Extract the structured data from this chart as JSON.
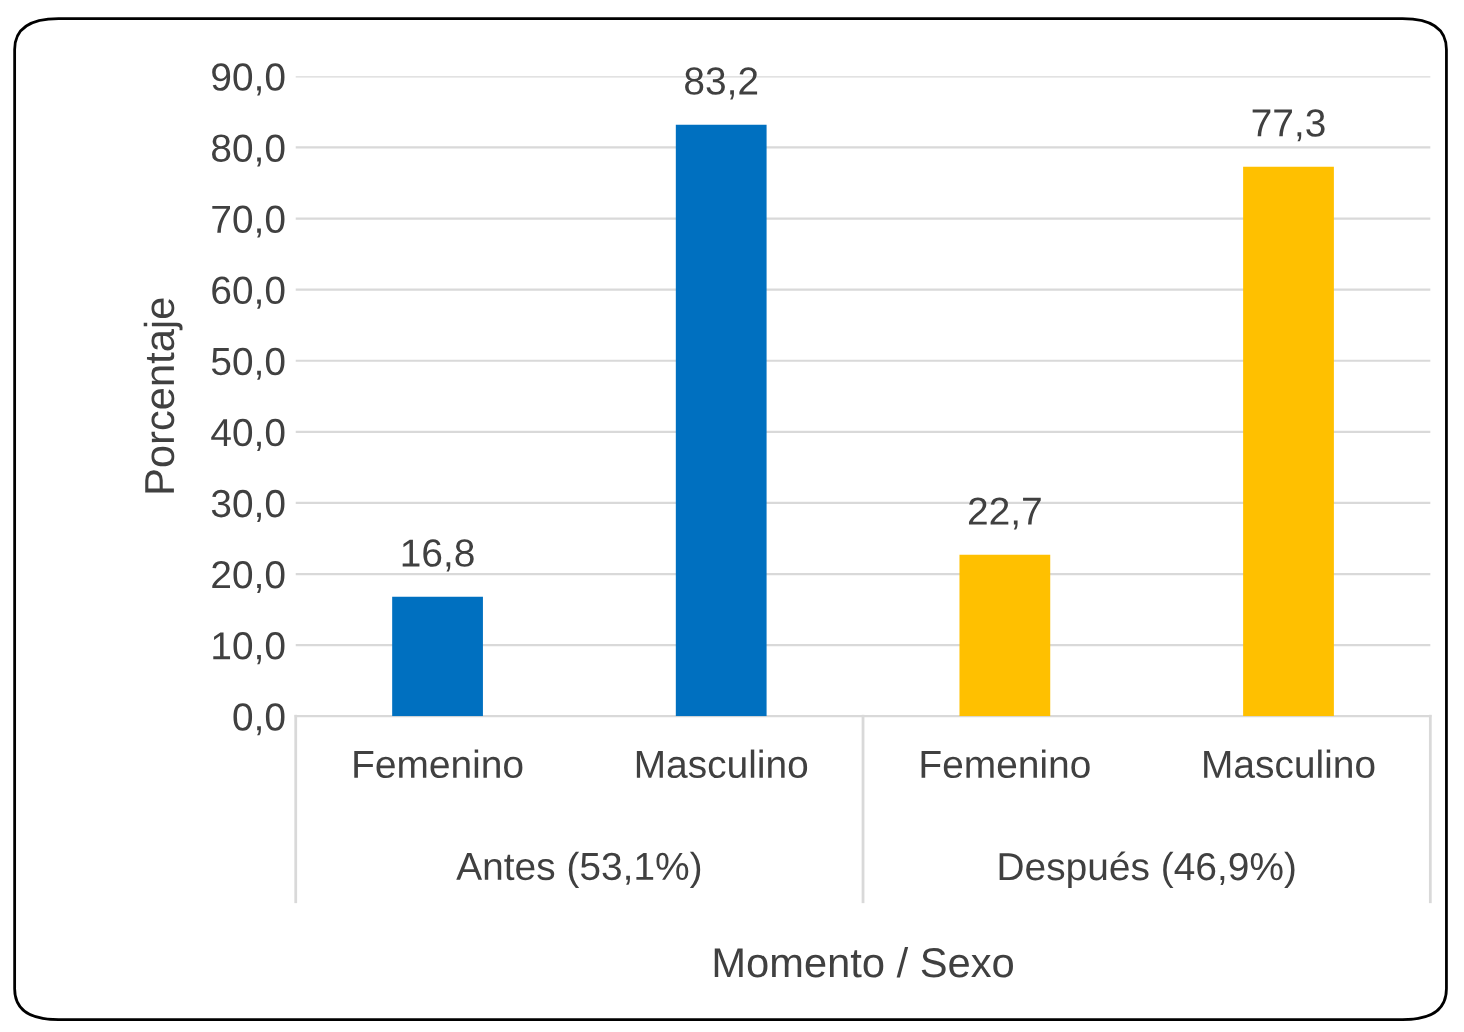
{
  "chart_data": {
    "type": "bar",
    "xlabel": "Momento / Sexo",
    "ylabel": "Porcentaje",
    "categories": [
      "Femenino",
      "Masculino",
      "Femenino",
      "Masculino"
    ],
    "values": [
      16.8,
      83.2,
      22.7,
      77.3
    ],
    "colors": [
      "#0070c0",
      "#0070c0",
      "#ffc000",
      "#ffc000"
    ],
    "value_labels": [
      "16,8",
      "83,2",
      "22,7",
      "77,3"
    ],
    "annotations": [
      "Antes (53,1%)",
      "Después (46,9%)"
    ],
    "ylim": [
      0,
      90
    ],
    "yticks": [
      {
        "value": 0,
        "label": "0,0"
      },
      {
        "value": 10,
        "label": "10,0"
      },
      {
        "value": 20,
        "label": "20,0"
      },
      {
        "value": 30,
        "label": "30,0"
      },
      {
        "value": 40,
        "label": "40,0"
      },
      {
        "value": 50,
        "label": "50,0"
      },
      {
        "value": 60,
        "label": "60,0"
      },
      {
        "value": 70,
        "label": "70,0"
      },
      {
        "value": 80,
        "label": "80,0"
      },
      {
        "value": 90,
        "label": "90,0"
      }
    ],
    "grid": "y",
    "legend": false
  }
}
